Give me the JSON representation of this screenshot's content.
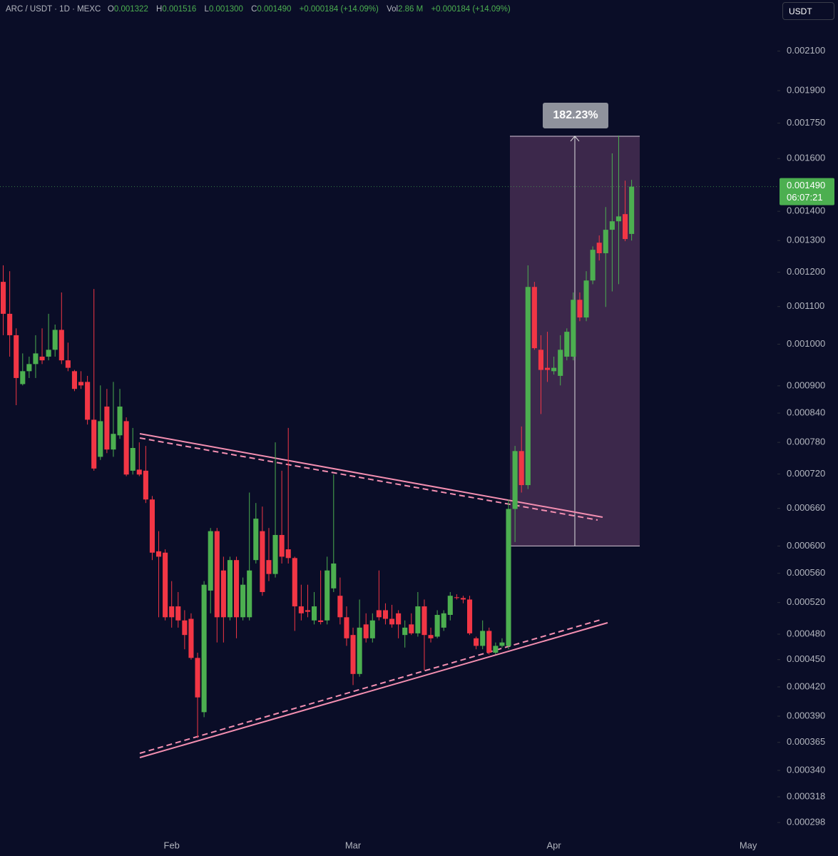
{
  "header": {
    "symbol": "ARC / USDT · 1D · MEXC",
    "fields": [
      {
        "key": "O",
        "value": "0.001322"
      },
      {
        "key": "H",
        "value": "0.001516"
      },
      {
        "key": "L",
        "value": "0.001300"
      },
      {
        "key": "C",
        "value": "0.001490"
      }
    ],
    "change": "+0.000184 (+14.09%)",
    "volume": {
      "key": "Vol",
      "value": "2.86 M",
      "change": "+0.000184 (+14.09%)"
    },
    "currency": "USDT"
  },
  "chart_data": {
    "type": "candlestick",
    "log_scale": true,
    "up_color": "#4caf50",
    "down_color": "#f23645",
    "categories": [
      null,
      null,
      null,
      null,
      null,
      null,
      null,
      null,
      null,
      null,
      null,
      null,
      null,
      null,
      null,
      null,
      null,
      null,
      null,
      null,
      null,
      null,
      null,
      null,
      null,
      null,
      "Feb",
      null,
      null,
      null,
      null,
      null,
      null,
      null,
      null,
      null,
      null,
      null,
      null,
      null,
      null,
      null,
      null,
      null,
      null,
      null,
      null,
      null,
      null,
      null,
      null,
      null,
      null,
      null,
      "Mar",
      null,
      null,
      null,
      null,
      null,
      null,
      null,
      null,
      null,
      null,
      null,
      null,
      null,
      null,
      null,
      null,
      null,
      null,
      null,
      null,
      null,
      null,
      null,
      null,
      null,
      null,
      null,
      null,
      null,
      null,
      "Apr",
      null,
      null,
      null,
      null,
      null,
      null,
      null,
      null,
      null,
      null,
      null,
      null,
      null,
      null,
      null,
      null,
      null,
      null,
      null,
      null,
      null,
      null,
      null,
      null,
      null,
      null,
      null,
      null,
      null,
      "May",
      null,
      null,
      null,
      null
    ],
    "open": [
      0.001171,
      0.00108,
      0.001023,
      0.000904,
      0.000934,
      0.000951,
      0.000969,
      0.000969,
      0.000986,
      0.001037,
      0.00096,
      0.000934,
      0.000909,
      0.000909,
      0.000826,
      0.000752,
      0.000854,
      0.000766,
      0.000794,
      0.000823,
      0.000726,
      0.000728,
      0.000726,
      0.000675,
      0.000592,
      0.00059,
      0.000515,
      0.000515,
      0.000497,
      0.000499,
      0.000452,
      0.000394,
      0.000536,
      0.000623,
      0.000564,
      0.000501,
      0.000579,
      0.000501,
      0.000501,
      0.000579,
      0.000623,
      0.000579,
      0.000559,
      0.000617,
      0.000595,
      0.000582,
      0.000515,
      0.00051,
      0.000497,
      0.000497,
      0.000497,
      0.000539,
      0.000529,
      0.000501,
      0.000479,
      0.000434,
      0.000492,
      0.000475,
      0.00051,
      0.00051,
      0.000499,
      0.000506,
      0.000479,
      0.000492,
      0.000481,
      0.000515,
      0.000479,
      0.000477,
      0.000488,
      0.000504,
      0.000527,
      0.000526,
      0.000524,
      0.000475,
      0.000466,
      0.000484,
      0.000458,
      0.000466,
      0.000466,
      0.000659,
      0.000763,
      0.0007,
      0.001156,
      0.000986,
      0.000942,
      0.000934,
      0.000923,
      0.000969,
      0.000969,
      0.001119,
      0.00107,
      0.001175,
      0.001293,
      0.001259,
      0.001336,
      0.001365,
      0.00139,
      0.001322,
      null,
      null,
      null,
      null,
      null,
      null,
      null,
      null,
      null,
      null,
      null,
      null,
      null,
      null,
      null,
      null,
      null,
      null,
      null,
      null,
      null,
      null
    ],
    "high": [
      0.001221,
      0.001203,
      0.001041,
      0.000977,
      0.000969,
      0.001023,
      0.001041,
      0.00108,
      0.001051,
      0.00114,
      0.001004,
      0.000937,
      0.000934,
      0.000923,
      0.00115,
      0.000901,
      0.000893,
      0.000909,
      0.000893,
      0.000831,
      0.000809,
      0.00078,
      0.000773,
      0.000681,
      0.000623,
      0.000595,
      0.000549,
      0.000534,
      0.00051,
      0.000506,
      0.000458,
      0.000549,
      0.000628,
      0.000628,
      0.000584,
      0.000584,
      0.000584,
      0.000554,
      0.000687,
      0.000669,
      0.000663,
      0.000628,
      0.00078,
      0.000726,
      0.000809,
      0.000584,
      0.000544,
      0.000544,
      0.000534,
      0.000564,
      0.000584,
      0.000719,
      0.000554,
      0.000515,
      0.000488,
      0.000524,
      0.000506,
      0.000506,
      0.000564,
      0.000519,
      0.000517,
      0.00051,
      0.000497,
      0.000506,
      0.000534,
      0.000524,
      0.000488,
      0.00051,
      0.00051,
      0.000534,
      0.000531,
      0.000529,
      0.000529,
      0.000477,
      0.000497,
      0.000488,
      0.00047,
      0.000475,
      0.000675,
      0.000773,
      0.000812,
      0.001221,
      0.001171,
      0.001023,
      0.001032,
      0.000969,
      0.001023,
      0.001041,
      0.00114,
      0.00114,
      0.001203,
      0.001281,
      0.001317,
      0.001415,
      0.001621,
      0.001696,
      0.001513,
      0.001516,
      null,
      null,
      null,
      null,
      null,
      null,
      null,
      null,
      null,
      null,
      null,
      null,
      null,
      null,
      null,
      null,
      null,
      null,
      null,
      null,
      null,
      null
    ],
    "low": [
      0.001023,
      0.000969,
      0.000857,
      0.000901,
      0.000918,
      0.000918,
      0.000951,
      0.00096,
      0.000969,
      0.000951,
      0.000934,
      0.000888,
      0.000893,
      0.000816,
      0.000726,
      0.000746,
      0.000759,
      0.000752,
      0.000787,
      0.000716,
      0.000719,
      0.000716,
      0.000669,
      0.000579,
      0.000501,
      0.000497,
      0.000488,
      0.000488,
      0.000462,
      0.00045,
      0.000369,
      0.000389,
      0.000506,
      0.00047,
      0.00047,
      0.000497,
      0.000475,
      0.000497,
      0.000497,
      0.000574,
      0.000529,
      0.000549,
      0.000554,
      0.000574,
      0.000574,
      0.000484,
      0.000497,
      0.000501,
      0.000492,
      0.000492,
      0.000492,
      0.000534,
      0.000492,
      0.000466,
      0.000422,
      0.000431,
      0.00047,
      0.00047,
      0.000497,
      0.000492,
      0.000488,
      0.000475,
      0.000464,
      0.000479,
      0.000477,
      0.000438,
      0.00047,
      0.000475,
      0.000484,
      0.000497,
      0.000524,
      0.000519,
      0.000479,
      0.000462,
      0.000462,
      0.000456,
      0.000456,
      0.000464,
      0.000462,
      0.000606,
      0.000687,
      0.000693,
      0.000986,
      0.000838,
      0.000909,
      0.000926,
      0.000901,
      0.00096,
      0.00096,
      0.00106,
      0.00106,
      0.001164,
      0.001236,
      0.001099,
      0.001143,
      0.001164,
      0.001298,
      0.0013,
      null,
      null,
      null,
      null,
      null,
      null,
      null,
      null,
      null,
      null,
      null,
      null,
      null,
      null,
      null,
      null,
      null,
      null,
      null,
      null,
      null,
      null
    ],
    "close": [
      0.00108,
      0.001023,
      0.000918,
      0.000934,
      0.000951,
      0.000977,
      0.00096,
      0.000986,
      0.001037,
      0.00096,
      0.000942,
      0.000893,
      0.000901,
      0.000826,
      0.00073,
      0.000823,
      0.000766,
      0.000797,
      0.000854,
      0.000719,
      0.000769,
      0.000719,
      0.000675,
      0.00059,
      0.000584,
      0.000501,
      0.000501,
      0.000497,
      0.000479,
      0.000452,
      0.000409,
      0.000544,
      0.000623,
      0.000501,
      0.000501,
      0.000579,
      0.000501,
      0.000544,
      0.000564,
      0.000643,
      0.000534,
      0.000559,
      0.000617,
      0.000584,
      0.000582,
      0.000515,
      0.000506,
      0.000508,
      0.000515,
      0.000495,
      0.000564,
      0.000574,
      0.000501,
      0.000475,
      0.000434,
      0.000488,
      0.000475,
      0.000497,
      0.000501,
      0.000499,
      0.000492,
      0.000492,
      0.000488,
      0.000481,
      0.000515,
      0.000479,
      0.000475,
      0.000504,
      0.000506,
      0.000529,
      0.000526,
      0.000524,
      0.000481,
      0.000466,
      0.000484,
      0.000458,
      0.000466,
      0.00047,
      0.000659,
      0.000763,
      0.0007,
      0.001156,
      0.00099,
      0.000937,
      0.000937,
      0.000942,
      0.000986,
      0.001032,
      0.001119,
      0.00107,
      0.001175,
      0.00127,
      0.001259,
      0.001336,
      0.001365,
      0.001382,
      0.001305,
      0.00149,
      null,
      null,
      null,
      null,
      null,
      null,
      null,
      null,
      null,
      null,
      null,
      null,
      null,
      null,
      null,
      null,
      null,
      null,
      null,
      null,
      null,
      null
    ],
    "ylim": [
      0.000289,
      0.00239
    ],
    "yticks": [
      {
        "value": 0.0021,
        "label": "0.002100"
      },
      {
        "value": 0.0019,
        "label": "0.001900"
      },
      {
        "value": 0.00175,
        "label": "0.001750"
      },
      {
        "value": 0.0016,
        "label": "0.001600"
      },
      {
        "value": 0.0014,
        "label": "0.001400"
      },
      {
        "value": 0.0013,
        "label": "0.001300"
      },
      {
        "value": 0.0012,
        "label": "0.001200"
      },
      {
        "value": 0.0011,
        "label": "0.001100"
      },
      {
        "value": 0.001,
        "label": "0.001000"
      },
      {
        "value": 0.0009,
        "label": "0.000900"
      },
      {
        "value": 0.00084,
        "label": "0.000840"
      },
      {
        "value": 0.00078,
        "label": "0.000780"
      },
      {
        "value": 0.00072,
        "label": "0.000720"
      },
      {
        "value": 0.00066,
        "label": "0.000660"
      },
      {
        "value": 0.0006,
        "label": "0.000600"
      },
      {
        "value": 0.00056,
        "label": "0.000560"
      },
      {
        "value": 0.00052,
        "label": "0.000520"
      },
      {
        "value": 0.00048,
        "label": "0.000480"
      },
      {
        "value": 0.00045,
        "label": "0.000450"
      },
      {
        "value": 0.00042,
        "label": "0.000420"
      },
      {
        "value": 0.00039,
        "label": "0.000390"
      },
      {
        "value": 0.000365,
        "label": "0.000365"
      },
      {
        "value": 0.00034,
        "label": "0.000340"
      },
      {
        "value": 0.000318,
        "label": "0.000318"
      },
      {
        "value": 0.000298,
        "label": "0.000298"
      }
    ],
    "grid": false,
    "last_price": {
      "value": 0.00149,
      "label": "0.001490",
      "countdown": "06:07:21",
      "color": "#4caf50"
    },
    "measure": {
      "label": "182.23%",
      "from": 0.0006,
      "to": 0.001693
    }
  }
}
